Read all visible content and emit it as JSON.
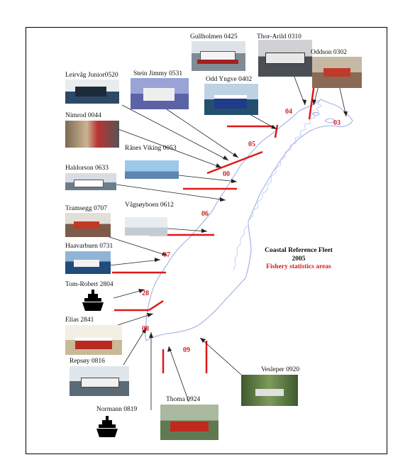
{
  "legend": {
    "title": "Coastal Reference Fleet",
    "year": "2005",
    "subtitle": "Fishery statistics areas"
  },
  "areas": [
    "00",
    "03",
    "04",
    "05",
    "06",
    "07",
    "08",
    "09",
    "28"
  ],
  "vessels": [
    "Gullholmen 0425",
    "Thor-Arild 0310",
    "Oddson 0302",
    "Leirvåg Junior0520",
    "Stein Jimmy 0531",
    "Odd Yngve 0402",
    "Nimrod 0044",
    "Rånes Viking 0053",
    "Haldorson 0633",
    "Vågsøyboen 0612",
    "Tramsegg 0707",
    "Haavarbuen 0731",
    "Tom-Robert 2804",
    "Elias  2841",
    "Repsøy  0816",
    "Normann 0819",
    "Thoma 0924",
    "Vesleper 0920"
  ],
  "colors": {
    "coast": "#9fb0e6",
    "boundary": "#e01818",
    "area_label": "#d42020",
    "arrow": "#222222",
    "ship_icon": "#000000"
  },
  "icons": [
    "ship-silhouette-icon"
  ]
}
